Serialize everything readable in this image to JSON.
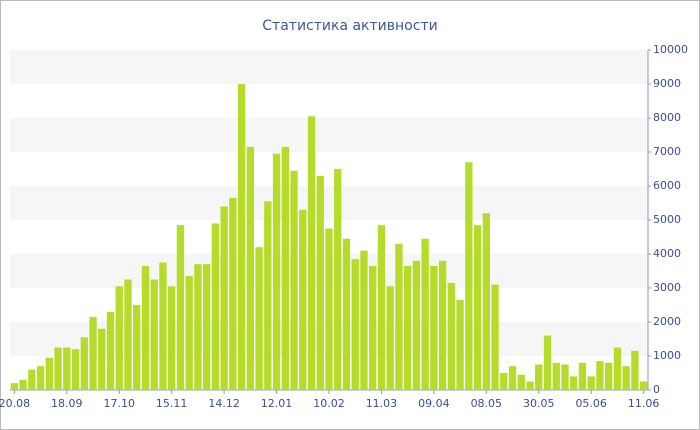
{
  "chart_data": {
    "type": "bar",
    "title": "Статистика активности",
    "categories": [
      "20.08",
      null,
      null,
      null,
      null,
      null,
      "18.09",
      null,
      null,
      null,
      null,
      null,
      "17.10",
      null,
      null,
      null,
      null,
      null,
      "15.11",
      null,
      null,
      null,
      null,
      null,
      "14.12",
      null,
      null,
      null,
      null,
      null,
      "12.01",
      null,
      null,
      null,
      null,
      null,
      "10.02",
      null,
      null,
      null,
      null,
      null,
      "11.03",
      null,
      null,
      null,
      null,
      null,
      "09.04",
      null,
      null,
      null,
      null,
      null,
      "08.05",
      null,
      null,
      null,
      null,
      null,
      "30.05",
      null,
      null,
      null,
      null,
      null,
      "05.06",
      null,
      null,
      null,
      null,
      null,
      "11.06"
    ],
    "values": [
      200,
      300,
      600,
      700,
      950,
      1250,
      1250,
      1200,
      1550,
      2150,
      1800,
      2300,
      3050,
      3250,
      2500,
      3650,
      3250,
      3750,
      3050,
      4850,
      3350,
      3700,
      3700,
      4900,
      5400,
      5650,
      9000,
      7150,
      4200,
      5550,
      6950,
      7150,
      6450,
      5300,
      8050,
      6300,
      4750,
      6500,
      4450,
      3850,
      4100,
      3650,
      4850,
      3050,
      4300,
      3650,
      3800,
      4450,
      3650,
      3800,
      3150,
      2650,
      6700,
      4850,
      5200,
      3100,
      500,
      700,
      450,
      250,
      750,
      1600,
      800,
      750,
      400,
      800,
      400,
      850,
      800,
      1250,
      700,
      1150,
      250
    ],
    "color": "#b5dc2a",
    "ylim": [
      0,
      10000
    ],
    "yticks": [
      0,
      1000,
      2000,
      3000,
      4000,
      5000,
      6000,
      7000,
      8000,
      9000,
      10000
    ],
    "grid": true
  }
}
